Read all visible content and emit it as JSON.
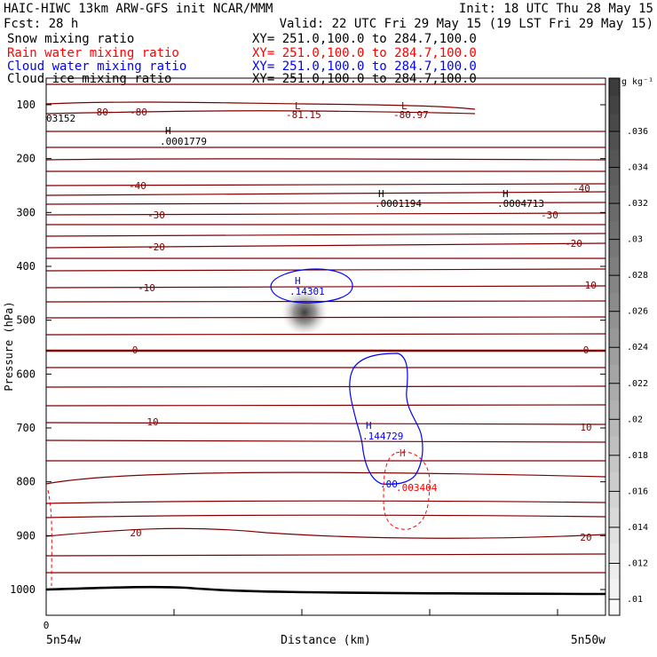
{
  "header": {
    "title": "HAIC-HIWC 13km ARW-GFS init   NCAR/MMM",
    "init": "Init: 18 UTC Thu 28 May 15",
    "fcst": "Fcst:   28 h",
    "valid": "Valid: 22 UTC Fri 29 May 15 (19 LST Fri 29 May 15)"
  },
  "fields": [
    {
      "name": "Snow mixing ratio",
      "xy": "XY= 251.0,100.0 to 284.7,100.0",
      "color": "#000000"
    },
    {
      "name": "Rain water mixing ratio",
      "xy": "XY= 251.0,100.0 to 284.7,100.0",
      "color": "#ff0000"
    },
    {
      "name": "Cloud water mixing ratio",
      "xy": "XY= 251.0,100.0 to 284.7,100.0",
      "color": "#0000ff"
    },
    {
      "name": "Cloud ice mixing ratio",
      "xy": "XY= 251.0,100.0 to 284.7,100.0",
      "color": "#000000"
    }
  ],
  "chart_data": {
    "type": "cross-section",
    "ylabel": "Pressure (hPa)",
    "xlabel": "Distance (km)",
    "y_ticks": [
      100,
      200,
      300,
      400,
      500,
      600,
      700,
      800,
      900,
      1000
    ],
    "ylim": [
      1050,
      50
    ],
    "x_tick_label": "0",
    "x_end_labels": [
      "5n54w",
      "5n50w"
    ],
    "temperature_labels": [
      "-80",
      "-80",
      "-40",
      "-40",
      "-30",
      "-30",
      "-20",
      "-20",
      "-10",
      "-10",
      "0",
      "0",
      "10",
      "10",
      "20",
      "20"
    ],
    "extrema": [
      {
        "symbol": "L",
        "value": "-81.15",
        "field": "temperature"
      },
      {
        "symbol": "L",
        "value": "-80.97",
        "field": "temperature"
      },
      {
        "symbol": "H",
        "value": ".0001779",
        "field": "cloud ice"
      },
      {
        "symbol": "H",
        "value": ".0001194",
        "field": "cloud ice"
      },
      {
        "symbol": "H",
        "value": ".0004713",
        "field": "cloud ice"
      },
      {
        "symbol": "H",
        "value": ".14301",
        "field": "cloud water"
      },
      {
        "symbol": "H",
        "value": ".144729",
        "field": "cloud water"
      },
      {
        "symbol": "H",
        "value": ".003404",
        "field": "rain water"
      }
    ],
    "corner_label": "03152",
    "small_label": ".00",
    "colorbar": {
      "unit": "g kg⁻¹",
      "ticks": [
        ".036",
        ".034",
        ".032",
        ".03",
        ".028",
        ".026",
        ".024",
        ".022",
        ".02",
        ".018",
        ".016",
        ".014",
        ".012",
        ".01"
      ]
    },
    "colors": {
      "temperature": "#800000",
      "cloud_water": "#0000ff",
      "rain_water": "#ff0000",
      "terrain": "#000000"
    }
  }
}
